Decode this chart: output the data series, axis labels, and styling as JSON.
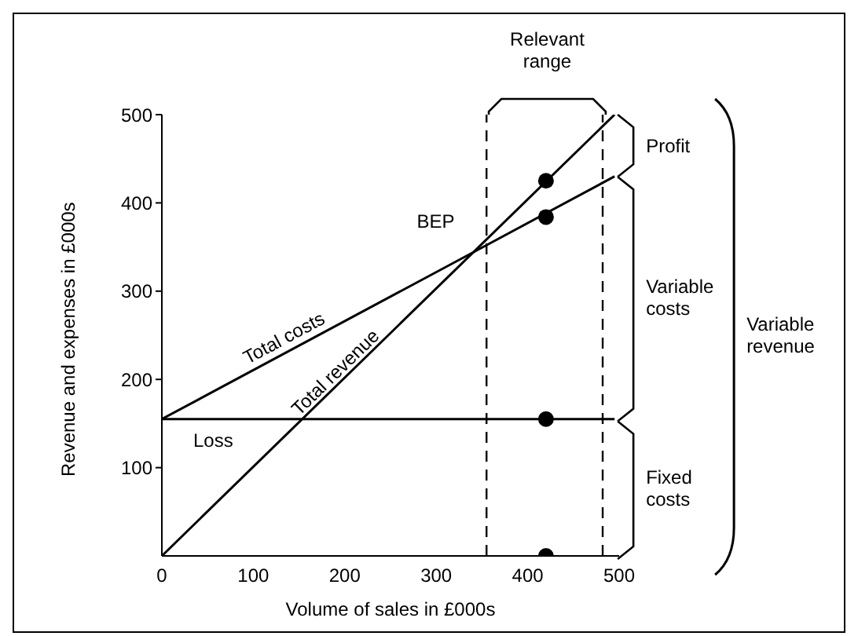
{
  "chart_data": {
    "type": "line",
    "xlabel": "Volume of sales in £000s",
    "ylabel": "Revenue and expenses in £000s",
    "xlim": [
      0,
      500
    ],
    "xticks": [
      0,
      100,
      200,
      300,
      400,
      500
    ],
    "ylim": [
      0,
      500
    ],
    "yticks": [
      100,
      200,
      300,
      400,
      500
    ],
    "marker": "none",
    "line_style": "solid",
    "series": [
      {
        "name": "Total revenue",
        "color": "#000000",
        "x": [
          0,
          495
        ],
        "values": [
          0,
          500
        ]
      },
      {
        "name": "Total costs",
        "color": "#000000",
        "x": [
          0,
          335,
          495
        ],
        "values": [
          155,
          341,
          430
        ]
      },
      {
        "color": "#000000",
        "x": [
          0,
          495
        ],
        "values": [
          155,
          155
        ]
      },
      {
        "type": "scatter",
        "color": "#000000",
        "marker": "circle",
        "x": [
          420,
          420,
          420,
          420
        ],
        "values": [
          0,
          155,
          384,
          425
        ]
      }
    ],
    "ref_lines": [
      {
        "axis": "x",
        "value": 355,
        "line_style": "dashed",
        "color": "#000000"
      },
      {
        "axis": "x",
        "value": 482,
        "line_style": "dashed",
        "color": "#000000"
      }
    ],
    "annotations": [
      {
        "text": "BEP",
        "x": 335,
        "y": 341
      },
      "Loss",
      "Relevant range",
      "Profit",
      "Variable costs",
      "Fixed costs",
      "Variable revenue"
    ]
  }
}
